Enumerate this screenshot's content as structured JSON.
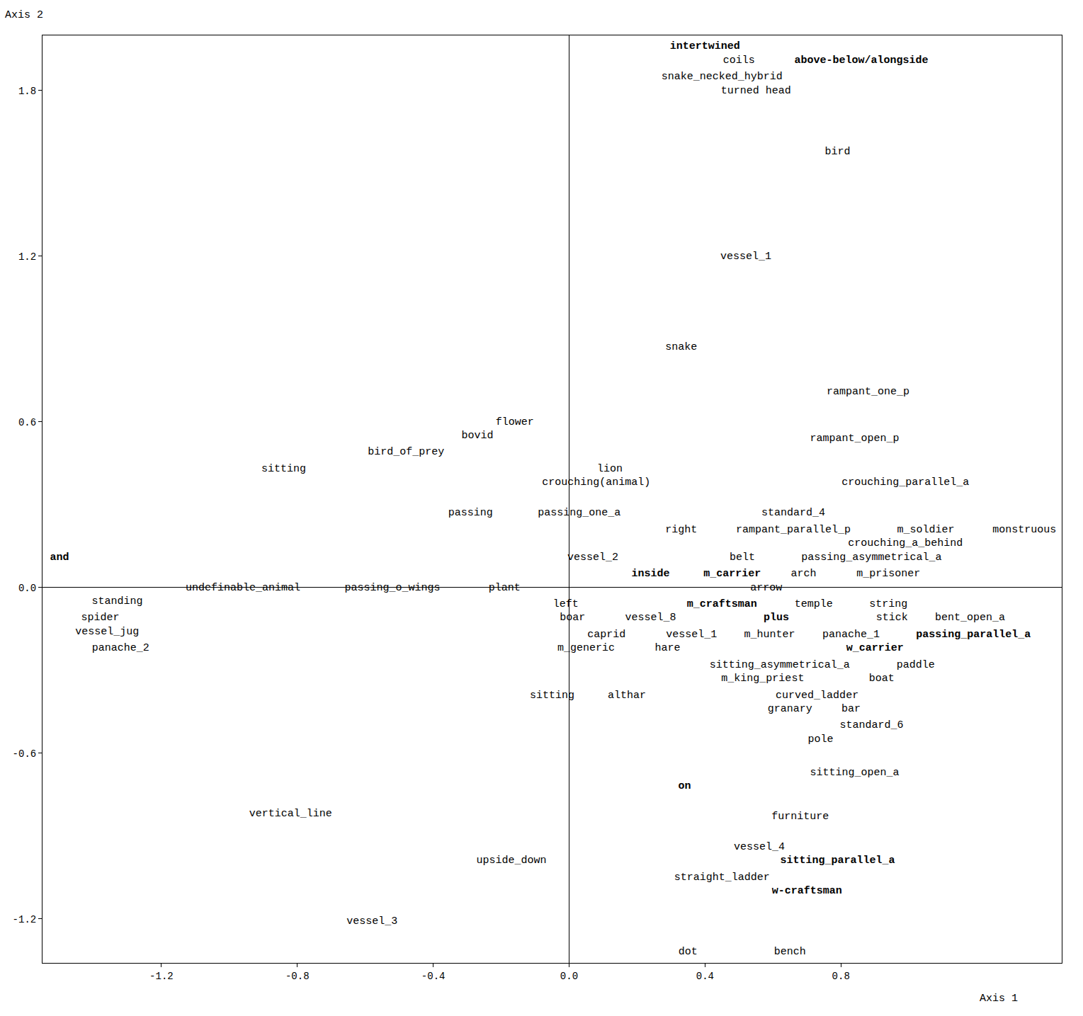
{
  "chart_data": {
    "type": "scatter",
    "x_label": "Axis 1",
    "y_label": "Axis 2",
    "xlim": [
      -1.55,
      1.45
    ],
    "xticks": [
      -1.2,
      -0.8,
      -0.4,
      {
        "value": 0,
        "label": "0.0"
      },
      0.4,
      0.8
    ],
    "ylim": [
      -1.36,
      2.0
    ],
    "yticks": [
      -1.2,
      -0.6,
      {
        "value": 0,
        "label": "0.0"
      },
      0.6,
      1.2,
      1.8
    ],
    "grid": false,
    "series": [
      {
        "marker": "bold",
        "labels": [
          "intertwined",
          "above-below/alongside",
          "and",
          "inside",
          "m_carrier",
          "m_craftsman",
          "plus",
          "passing_parallel_a",
          "w_carrier",
          "on",
          "sitting_parallel_a",
          "w-craftsman"
        ],
        "x": [
          0.4,
          0.86,
          -1.5,
          0.24,
          0.48,
          0.45,
          0.61,
          1.19,
          0.9,
          0.34,
          0.79,
          0.7
        ],
        "y": [
          1.96,
          1.91,
          0.11,
          0.05,
          0.05,
          -0.06,
          -0.11,
          -0.17,
          -0.22,
          -0.72,
          -0.99,
          -1.1
        ]
      },
      {
        "marker": "regular",
        "labels": [
          "coils",
          "snake_necked_hybrid",
          "turned head",
          "bird",
          "vessel_1",
          "snake",
          "rampant_one_p",
          "flower",
          "bovid",
          "rampant_open_p",
          "bird_of_prey",
          "sitting",
          "lion",
          "crouching(animal)",
          "crouching_parallel_a",
          "passing",
          "passing_one_a",
          "standard_4",
          "right",
          "rampant_parallel_p",
          "m_soldier",
          "monstruous",
          "crouching_a_behind",
          "vessel_2",
          "belt",
          "passing_asymmetrical_a",
          "arch",
          "m_prisoner",
          "undefinable_animal",
          "passing_o_wings",
          "plant",
          "arrow",
          "standing",
          "left",
          "temple",
          "string",
          "spider",
          "boar",
          "vessel_8",
          "stick",
          "bent_open_a",
          "vessel_jug",
          "caprid",
          "vessel_1",
          "m_hunter",
          "panache_1",
          "panache_2",
          "m_generic",
          "hare",
          "sitting_asymmetrical_a",
          "paddle",
          "m_king_priest",
          "boat",
          "sitting",
          "althar",
          "curved_ladder",
          "granary",
          "bar",
          "standard_6",
          "pole",
          "sitting_open_a",
          "vertical_line",
          "furniture",
          "vessel_4",
          "upside_down",
          "straight_ladder",
          "vessel_3",
          "dot",
          "bench"
        ],
        "x": [
          0.5,
          0.45,
          0.55,
          0.79,
          0.52,
          0.33,
          0.88,
          -0.16,
          -0.27,
          0.84,
          -0.48,
          -0.84,
          0.12,
          0.08,
          0.99,
          -0.29,
          0.03,
          0.66,
          0.33,
          0.66,
          1.05,
          1.34,
          0.99,
          0.07,
          0.51,
          0.89,
          0.69,
          0.94,
          -0.96,
          -0.52,
          -0.19,
          0.58,
          -1.33,
          -0.01,
          0.72,
          0.94,
          -1.38,
          0.01,
          0.24,
          0.95,
          1.18,
          -1.36,
          0.11,
          0.36,
          0.59,
          0.83,
          -1.32,
          0.05,
          0.29,
          0.62,
          1.02,
          0.57,
          0.92,
          -0.05,
          0.17,
          0.73,
          0.65,
          0.83,
          0.89,
          0.74,
          0.84,
          -0.82,
          0.68,
          0.56,
          -0.17,
          0.45,
          -0.58,
          0.35,
          0.65
        ],
        "y": [
          1.91,
          1.85,
          1.8,
          1.58,
          1.2,
          0.87,
          0.71,
          0.6,
          0.55,
          0.54,
          0.49,
          0.43,
          0.43,
          0.38,
          0.38,
          0.27,
          0.27,
          0.27,
          0.21,
          0.21,
          0.21,
          0.21,
          0.16,
          0.11,
          0.11,
          0.11,
          0.05,
          0.05,
          0.0,
          0.0,
          0.0,
          0.0,
          -0.05,
          -0.06,
          -0.06,
          -0.06,
          -0.11,
          -0.11,
          -0.11,
          -0.11,
          -0.11,
          -0.16,
          -0.17,
          -0.17,
          -0.17,
          -0.17,
          -0.22,
          -0.22,
          -0.22,
          -0.28,
          -0.28,
          -0.33,
          -0.33,
          -0.39,
          -0.39,
          -0.39,
          -0.44,
          -0.44,
          -0.5,
          -0.55,
          -0.67,
          -0.82,
          -0.83,
          -0.94,
          -0.99,
          -1.05,
          -1.21,
          -1.32,
          -1.32
        ]
      }
    ]
  }
}
